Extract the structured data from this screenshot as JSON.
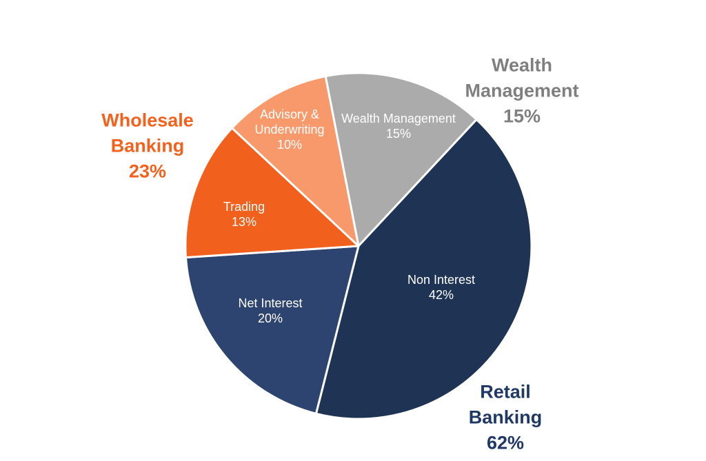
{
  "chart_data": {
    "type": "pie",
    "legend": "none",
    "background": "#FFFFFF",
    "start_angle_deg": -11,
    "direction": "clockwise",
    "slice_label_text_color": "#FFFFFF",
    "separator_color": "#FFFFFF",
    "slices": [
      {
        "label": "Wealth Management",
        "value_pct": 15,
        "color": "#ABABAB",
        "slice_label": "Wealth Management\n15%"
      },
      {
        "label": "Non Interest",
        "value_pct": 42,
        "color": "#1F3455",
        "slice_label": "Non Interest\n42%"
      },
      {
        "label": "Net Interest",
        "value_pct": 20,
        "color": "#2E4470",
        "slice_label": "Net Interest\n20%"
      },
      {
        "label": "Trading",
        "value_pct": 13,
        "color": "#F1601C",
        "slice_label": "Trading\n13%"
      },
      {
        "label": "Advisory & Underwriting",
        "value_pct": 10,
        "color": "#F8996C",
        "slice_label": "Advisory &\nUnderwriting\n10%"
      }
    ],
    "group_labels": [
      {
        "label": "Wealth Management",
        "value_pct": 15,
        "text": "Wealth\nManagement\n15%",
        "color": "#7F7F7F"
      },
      {
        "label": "Wholesale Banking",
        "value_pct": 23,
        "text": "Wholesale\nBanking\n23%",
        "color": "#F4611C"
      },
      {
        "label": "Retail Banking",
        "value_pct": 62,
        "text": "Retail\nBanking\n62%",
        "color": "#1F3864"
      }
    ]
  }
}
